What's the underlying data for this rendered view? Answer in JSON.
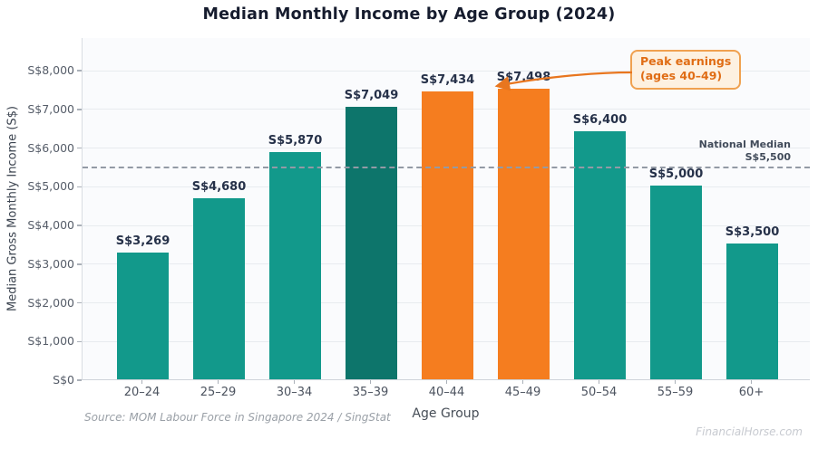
{
  "header": {
    "title": "Median Monthly Income by Age Group (2024)"
  },
  "chart_data": {
    "type": "bar",
    "title": "Median Monthly Income by Age Group (2024)",
    "xlabel": "Age Group",
    "ylabel": "Median Gross Monthly Income (S$)",
    "categories": [
      "20–24",
      "25–29",
      "30–34",
      "35–39",
      "40–44",
      "45–49",
      "50–54",
      "55–59",
      "60+"
    ],
    "values": [
      3269,
      4680,
      5870,
      7049,
      7434,
      7498,
      6400,
      5000,
      3500
    ],
    "value_labels": [
      "S$3,269",
      "S$4,680",
      "S$5,870",
      "S$7,049",
      "S$7,434",
      "S$7,498",
      "S$6,400",
      "S$5,000",
      "S$3,500"
    ],
    "bar_color_keys": [
      "teal",
      "teal",
      "teal",
      "dark_teal",
      "orange",
      "orange",
      "teal",
      "teal",
      "teal"
    ],
    "palette": {
      "teal": "#12998b",
      "dark_teal": "#0d756b",
      "orange": "#f57d1f"
    },
    "ylim": [
      0,
      8000
    ],
    "yticks": [
      0,
      1000,
      2000,
      3000,
      4000,
      5000,
      6000,
      7000,
      8000
    ],
    "ytick_labels": [
      "S$0",
      "S$1,000",
      "S$2,000",
      "S$3,000",
      "S$4,000",
      "S$5,000",
      "S$6,000",
      "S$7,000",
      "S$8,000"
    ],
    "grid": "horizontal",
    "legend": "none",
    "reference_line": {
      "value": 5500,
      "style": "dashed",
      "color": "#939aa5",
      "label_line1": "National Median",
      "label_line2": "S$5,500"
    },
    "annotation": {
      "line1": "Peak earnings",
      "line2": "(ages 40–49)",
      "target_category": "40–44",
      "text_color": "#e06d15",
      "border_color": "#f0a150",
      "background_color": "#fdf1e1",
      "arrow_color": "#e8761f"
    }
  },
  "footer": {
    "source": "Source: MOM Labour Force in Singapore 2024 / SingStat",
    "watermark": "FinancialHorse.com"
  }
}
